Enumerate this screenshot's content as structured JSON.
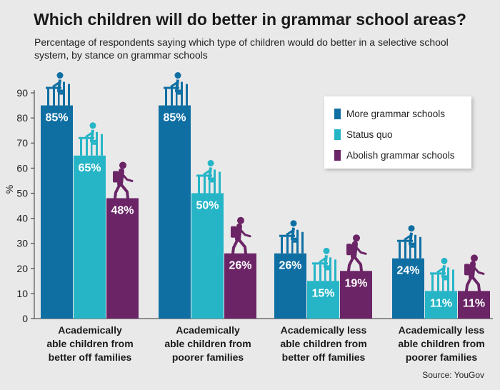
{
  "title": "Which children will do better in grammar school areas?",
  "subtitle": "Percentage of respondents saying which type of children would do better in a selective school system, by stance on grammar schools",
  "source": "Source: YouGov",
  "colors": {
    "more": "#0f6fa3",
    "status": "#25b5c7",
    "abolish": "#6b2466",
    "axis": "#333333"
  },
  "chart_data": {
    "type": "bar",
    "categories": [
      "Academically able children from better off families",
      "Academically able children from poorer families",
      "Academically less able children from better off families",
      "Academically less able children from poorer families"
    ],
    "category_lines": [
      [
        "Academically",
        "able children from",
        "better off families"
      ],
      [
        "Academically",
        "able children from",
        "poorer families"
      ],
      [
        "Academically less",
        "able children from",
        "better off families"
      ],
      [
        "Academically less",
        "able children from",
        "poorer families"
      ]
    ],
    "series": [
      {
        "name": "More grammar schools",
        "values": [
          85,
          85,
          26,
          24
        ],
        "labels": [
          "85%",
          "85%",
          "26%",
          "24%"
        ],
        "icon": "student-at-desk-icon"
      },
      {
        "name": "Status quo",
        "values": [
          65,
          50,
          15,
          11
        ],
        "labels": [
          "65%",
          "50%",
          "15%",
          "11%"
        ],
        "icon": "student-at-desk-icon"
      },
      {
        "name": "Abolish grammar schools",
        "values": [
          48,
          26,
          19,
          11
        ],
        "labels": [
          "48%",
          "26%",
          "19%",
          "11%"
        ],
        "icon": "student-walking-icon"
      }
    ],
    "ylabel": "%",
    "ylim": [
      0,
      90
    ],
    "yticks": [
      "0",
      "10",
      "20",
      "30",
      "40",
      "50",
      "60",
      "70",
      "80",
      "90"
    ],
    "legend_position": "top-right",
    "grid": false
  }
}
